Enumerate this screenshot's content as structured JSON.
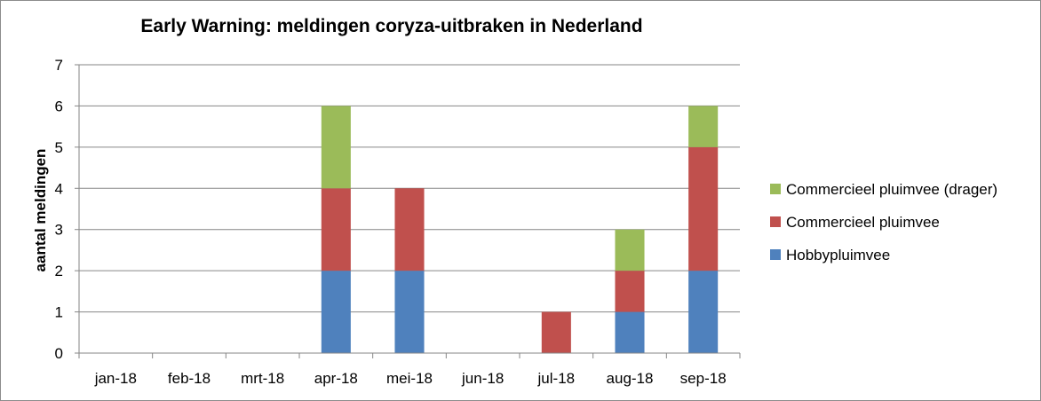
{
  "chart_data": {
    "type": "bar",
    "stacked": true,
    "title": "Early Warning: meldingen coryza-uitbraken in Nederland",
    "xlabel": "",
    "ylabel": "aantal meldingen",
    "ylim": [
      0,
      7
    ],
    "yticks": [
      0,
      1,
      2,
      3,
      4,
      5,
      6,
      7
    ],
    "grid": true,
    "legend_position": "right",
    "categories": [
      "jan-18",
      "feb-18",
      "mrt-18",
      "apr-18",
      "mei-18",
      "jun-18",
      "jul-18",
      "aug-18",
      "sep-18"
    ],
    "series": [
      {
        "name": "Hobbypluimvee",
        "color": "#4f81bd",
        "values": [
          0,
          0,
          0,
          2,
          2,
          0,
          0,
          1,
          2
        ]
      },
      {
        "name": "Commercieel pluimvee",
        "color": "#c0504d",
        "values": [
          0,
          0,
          0,
          2,
          2,
          0,
          1,
          1,
          3
        ]
      },
      {
        "name": "Commercieel pluimvee (drager)",
        "color": "#9bbb59",
        "values": [
          0,
          0,
          0,
          2,
          0,
          0,
          0,
          1,
          1
        ]
      }
    ]
  }
}
